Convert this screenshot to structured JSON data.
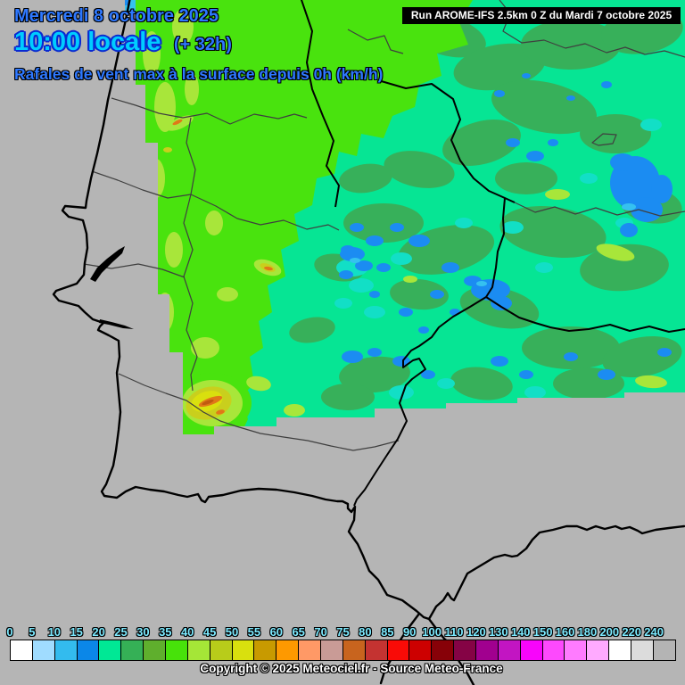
{
  "header": {
    "date": "Mercredi 8 octobre 2025",
    "time": "10:00 locale",
    "run_offset": "(+ 32h)",
    "title": "Rafales de vent max à la surface depuis 0h (km/h)"
  },
  "run_box": {
    "label": "Run AROME-IFS 2.5km 0 Z du Mardi 7 octobre 2025"
  },
  "legend": {
    "unit": "km/h",
    "ticks": [
      "0",
      "5",
      "10",
      "15",
      "20",
      "25",
      "30",
      "35",
      "40",
      "45",
      "50",
      "55",
      "60",
      "65",
      "70",
      "75",
      "80",
      "85",
      "90",
      "100",
      "110",
      "120",
      "130",
      "140",
      "150",
      "160",
      "180",
      "200",
      "220",
      "240"
    ],
    "colors": [
      "#ffffff",
      "#a0dcff",
      "#33bbee",
      "#0b87e8",
      "#00e895",
      "#35b056",
      "#5faf2d",
      "#47e20a",
      "#a5e637",
      "#b8cc1a",
      "#d9e00e",
      "#c89a00",
      "#fe9900",
      "#ff9966",
      "#c99b96",
      "#c8641e",
      "#c43331",
      "#f90b07",
      "#cd0000",
      "#870108",
      "#850345",
      "#a1008f",
      "#c215c2",
      "#f805fb",
      "#fd49fd",
      "#ff7bff",
      "#ffaaff",
      "#ffffff",
      "#dcdcdc",
      "#b4b4b4"
    ]
  },
  "map_palette": {
    "no_data_gray": "#b5b5b5",
    "base_gust_20_25": "#06e594",
    "gust_25_30": "#37b05a",
    "gust_35_40": "#49e30e",
    "gust_40_45": "#a8e63a",
    "gust_45_50": "#c9cf1d",
    "gust_60_65_spot": "#e07818",
    "rain_gust_blue": "#1b8cf2",
    "coast_border_black": "#000000"
  },
  "footer": {
    "copyright": "Copyright © 2025 Meteociel.fr - Source Meteo-France"
  }
}
